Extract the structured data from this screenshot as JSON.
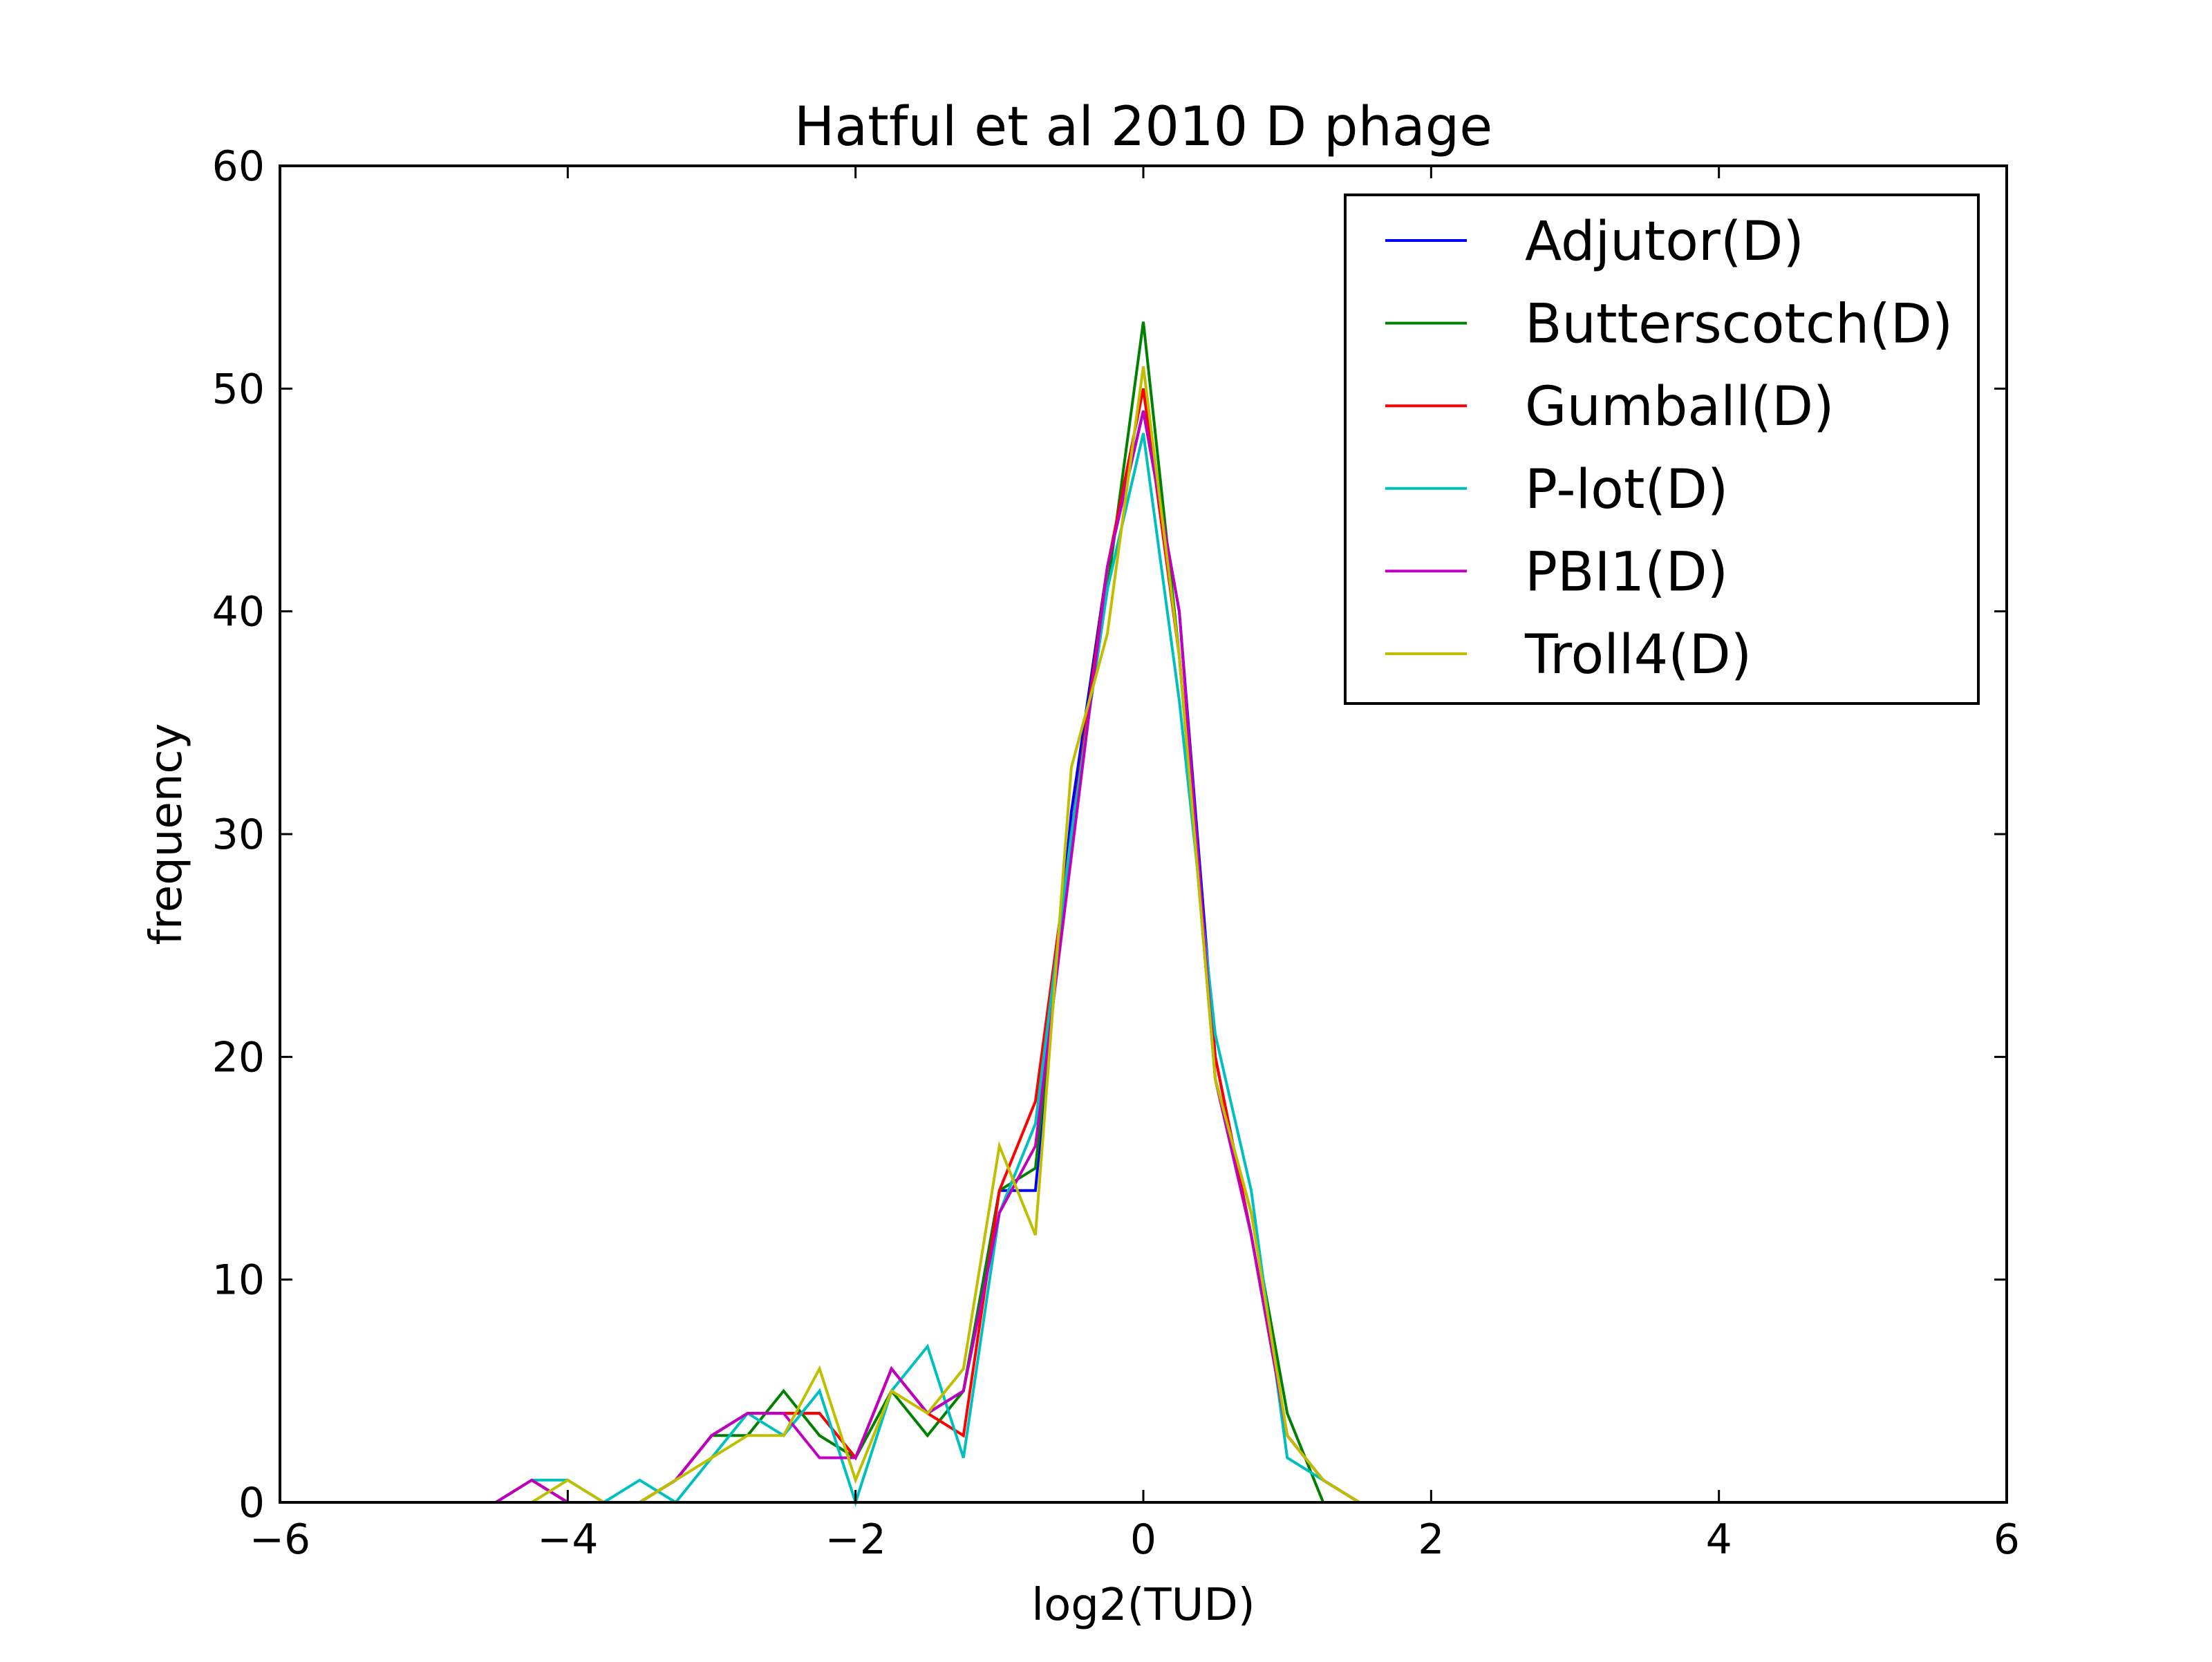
{
  "chart_data": {
    "type": "line",
    "title": "Hatful et al 2010 D phage",
    "xlabel": "log2(TUD)",
    "ylabel": "frequency",
    "xlim": [
      -6,
      6
    ],
    "ylim": [
      0,
      60
    ],
    "xticks": [
      -6,
      -4,
      -2,
      0,
      2,
      4,
      6
    ],
    "xtick_labels": [
      "−6",
      "−4",
      "−2",
      "0",
      "2",
      "4",
      "6"
    ],
    "yticks": [
      0,
      10,
      20,
      30,
      40,
      50,
      60
    ],
    "ytick_labels": [
      "0",
      "10",
      "20",
      "30",
      "40",
      "50",
      "60"
    ],
    "grid": false,
    "legend_position": "top-right",
    "series": [
      {
        "name": "Adjutor(D)",
        "color": "#0000ff",
        "x": [
          -4.5,
          -4.25,
          -4.0,
          -3.75,
          -3.5,
          -3.25,
          -3.0,
          -2.75,
          -2.5,
          -2.25,
          -2.0,
          -1.75,
          -1.5,
          -1.25,
          -1.0,
          -0.75,
          -0.5,
          -0.25,
          0.0,
          0.25,
          0.5,
          0.75,
          1.0,
          1.25,
          1.5
        ],
        "y": [
          0,
          1,
          0,
          0,
          0,
          1,
          3,
          4,
          4,
          4,
          2,
          6,
          4,
          5,
          14,
          14,
          31,
          42,
          49,
          40,
          20,
          12,
          3,
          1,
          0
        ]
      },
      {
        "name": "Butterscotch(D)",
        "color": "#008000",
        "x": [
          -4.5,
          -4.25,
          -4.0,
          -3.75,
          -3.5,
          -3.25,
          -3.0,
          -2.75,
          -2.5,
          -2.25,
          -2.0,
          -1.75,
          -1.5,
          -1.25,
          -1.0,
          -0.75,
          -0.5,
          -0.25,
          0.0,
          0.25,
          0.5,
          0.75,
          1.0,
          1.25
        ],
        "y": [
          0,
          1,
          0,
          0,
          0,
          1,
          3,
          3,
          5,
          3,
          2,
          5,
          3,
          5,
          14,
          15,
          30,
          41,
          53,
          38,
          19,
          13,
          4,
          0
        ]
      },
      {
        "name": "Gumball(D)",
        "color": "#ff0000",
        "x": [
          -4.5,
          -4.25,
          -4.0,
          -3.75,
          -3.5,
          -3.25,
          -3.0,
          -2.75,
          -2.5,
          -2.25,
          -2.0,
          -1.75,
          -1.5,
          -1.25,
          -1.0,
          -0.75,
          -0.5,
          -0.25,
          0.0,
          0.25,
          0.5,
          0.75,
          1.0,
          1.25,
          1.5
        ],
        "y": [
          0,
          1,
          0,
          0,
          0,
          1,
          3,
          4,
          4,
          4,
          2,
          6,
          4,
          3,
          14,
          18,
          30,
          42,
          50,
          38,
          20,
          12,
          3,
          1,
          0
        ]
      },
      {
        "name": "P-lot(D)",
        "color": "#00bfbf",
        "x": [
          -4.5,
          -4.25,
          -4.0,
          -3.75,
          -3.5,
          -3.25,
          -3.0,
          -2.75,
          -2.5,
          -2.25,
          -2.0,
          -1.75,
          -1.5,
          -1.25,
          -1.0,
          -0.75,
          -0.5,
          -0.25,
          0.0,
          0.25,
          0.5,
          0.75,
          1.0,
          1.25,
          1.5
        ],
        "y": [
          0,
          1,
          1,
          0,
          1,
          0,
          2,
          4,
          3,
          5,
          0,
          5,
          7,
          2,
          13,
          17,
          30,
          41,
          48,
          36,
          21,
          14,
          2,
          1,
          0
        ]
      },
      {
        "name": "PBI1(D)",
        "color": "#bf00bf",
        "x": [
          -4.5,
          -4.25,
          -4.0,
          -3.75,
          -3.5,
          -3.25,
          -3.0,
          -2.75,
          -2.5,
          -2.25,
          -2.0,
          -1.75,
          -1.5,
          -1.25,
          -1.0,
          -0.75,
          -0.5,
          -0.25,
          0.0,
          0.25,
          0.5,
          0.75,
          1.0,
          1.25,
          1.5
        ],
        "y": [
          0,
          1,
          0,
          0,
          0,
          1,
          3,
          4,
          4,
          2,
          2,
          6,
          4,
          5,
          13,
          16,
          29,
          42,
          49,
          40,
          19,
          12,
          3,
          1,
          0
        ]
      },
      {
        "name": "Troll4(D)",
        "color": "#bfbf00",
        "x": [
          -4.5,
          -4.25,
          -4.0,
          -3.75,
          -3.5,
          -3.25,
          -3.0,
          -2.75,
          -2.5,
          -2.25,
          -2.0,
          -1.75,
          -1.5,
          -1.25,
          -1.0,
          -0.75,
          -0.5,
          -0.25,
          0.0,
          0.25,
          0.5,
          0.75,
          1.0,
          1.25,
          1.5
        ],
        "y": [
          0,
          0,
          1,
          0,
          0,
          1,
          2,
          3,
          3,
          6,
          1,
          5,
          4,
          6,
          16,
          12,
          33,
          39,
          51,
          38,
          19,
          13,
          3,
          1,
          0
        ]
      }
    ]
  }
}
